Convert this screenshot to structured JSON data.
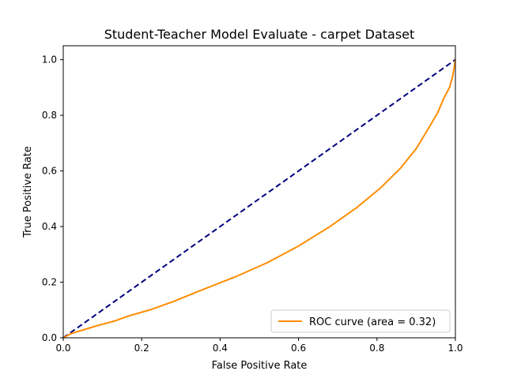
{
  "chart_data": {
    "type": "line",
    "title": "Student-Teacher Model Evaluate - carpet Dataset",
    "xlabel": "False Positive Rate",
    "ylabel": "True Positive Rate",
    "xlim": [
      0,
      1
    ],
    "ylim": [
      0,
      1.05
    ],
    "xticks": [
      0.0,
      0.2,
      0.4,
      0.6,
      0.8,
      1.0
    ],
    "yticks": [
      0.0,
      0.2,
      0.4,
      0.6,
      0.8,
      1.0
    ],
    "xtick_labels": [
      "0.0",
      "0.2",
      "0.4",
      "0.6",
      "0.8",
      "1.0"
    ],
    "ytick_labels": [
      "0.0",
      "0.2",
      "0.4",
      "0.6",
      "0.8",
      "1.0"
    ],
    "grid": false,
    "legend_position": "lower right",
    "series": [
      {
        "name": "ROC curve (area = 0.32)",
        "color": "#ff8c00",
        "style": "solid",
        "x": [
          0.0,
          0.02,
          0.05,
          0.09,
          0.13,
          0.17,
          0.22,
          0.28,
          0.35,
          0.44,
          0.52,
          0.6,
          0.68,
          0.75,
          0.81,
          0.86,
          0.9,
          0.93,
          0.955,
          0.97,
          0.985,
          0.993,
          1.0
        ],
        "y": [
          0.0,
          0.015,
          0.028,
          0.045,
          0.06,
          0.08,
          0.1,
          0.13,
          0.17,
          0.22,
          0.27,
          0.33,
          0.4,
          0.47,
          0.54,
          0.61,
          0.68,
          0.75,
          0.81,
          0.86,
          0.9,
          0.94,
          1.0
        ]
      },
      {
        "name": "",
        "color": "#000080",
        "style": "dashed",
        "x": [
          0.0,
          1.0
        ],
        "y": [
          0.0,
          1.0
        ]
      }
    ]
  }
}
